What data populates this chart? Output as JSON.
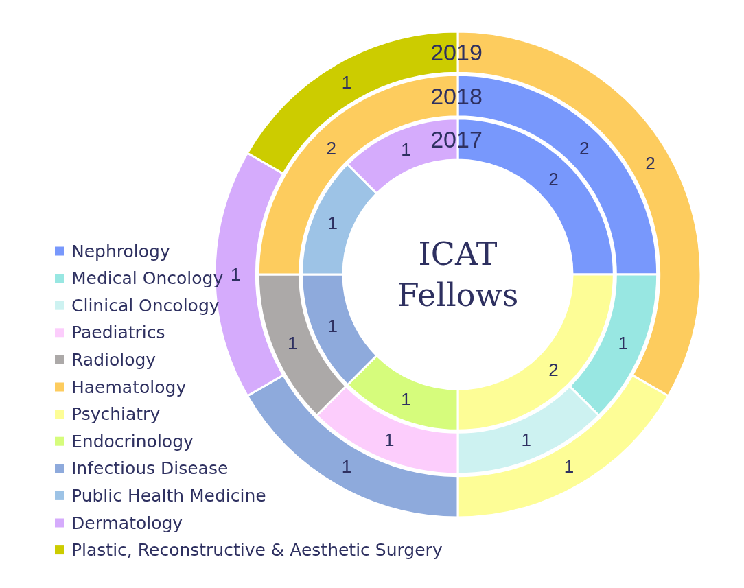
{
  "chart_data": {
    "type": "donut",
    "title": "ICAT Fellows",
    "categories": [
      "Nephrology",
      "Medical Oncology",
      "Clinical Oncology",
      "Paediatrics",
      "Radiology",
      "Haematology",
      "Psychiatry",
      "Endocrinology",
      "Infectious Disease",
      "Public Health Medicine",
      "Dermatology",
      "Plastic, Reconstructive & Aesthetic Surgery"
    ],
    "colors": [
      "#7898fc",
      "#98e7e2",
      "#cdf2f1",
      "#fccdfc",
      "#aca9a8",
      "#fdcc5e",
      "#fdfd96",
      "#d6fc7c",
      "#8eaadc",
      "#9dc3e6",
      "#d5abfc",
      "#cccc00"
    ],
    "legend": "left",
    "data_labels": true,
    "series": [
      {
        "name": "2019",
        "values": [
          null,
          null,
          null,
          null,
          null,
          2,
          1,
          null,
          1,
          null,
          1,
          1
        ]
      },
      {
        "name": "2018",
        "values": [
          2,
          1,
          1,
          1,
          1,
          2,
          null,
          null,
          null,
          null,
          null,
          null
        ]
      },
      {
        "name": "2017",
        "values": [
          2,
          null,
          null,
          null,
          null,
          null,
          2,
          1,
          1,
          1,
          1,
          null
        ]
      }
    ]
  }
}
